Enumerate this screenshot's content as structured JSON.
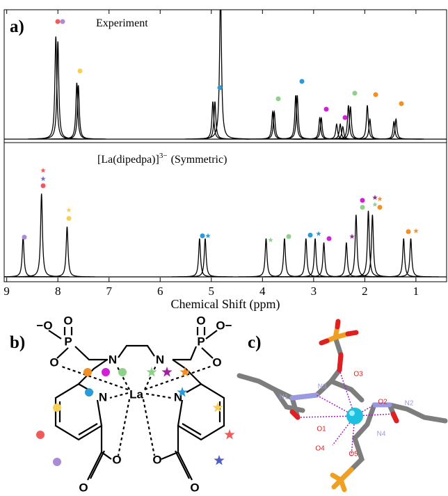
{
  "chart_data": [
    {
      "type": "spectrum",
      "label": "a)",
      "title": "Experiment",
      "color": "#000000",
      "x": [
        8.04,
        8.0,
        7.63,
        7.6,
        4.97,
        4.93,
        4.82,
        3.8,
        3.77,
        3.35,
        3.32,
        2.88,
        2.85,
        2.55,
        2.48,
        2.43,
        2.32,
        2.28,
        1.95,
        1.9,
        1.43,
        1.39
      ],
      "values": [
        82,
        78,
        45,
        43,
        30,
        30,
        120,
        22,
        22,
        35,
        35,
        17,
        17,
        12,
        12,
        10,
        27,
        26,
        27,
        16,
        14,
        16
      ],
      "xlim": [
        9.05,
        0.4
      ],
      "ylim": [
        0,
        100
      ]
    },
    {
      "type": "spectrum",
      "title": [
        "[La(dipedpa)]",
        "3−",
        "(Symmetric)"
      ],
      "color": "#000000",
      "x": [
        8.68,
        8.32,
        7.82,
        5.23,
        5.12,
        3.93,
        3.57,
        3.15,
        2.97,
        2.8,
        2.36,
        2.17,
        1.93,
        1.85,
        1.24,
        1.1
      ],
      "values": [
        30,
        63,
        38,
        29,
        29,
        29,
        29,
        29,
        29,
        26,
        26,
        47,
        50,
        47,
        29,
        29
      ],
      "xlim": [
        9.05,
        0.4
      ],
      "ylim": [
        0,
        100
      ],
      "xticks": [
        9,
        8,
        7,
        6,
        5,
        4,
        3,
        2,
        1
      ],
      "xlabel": "Chemical Shift (ppm)"
    }
  ],
  "panel_b": {
    "label": "b)",
    "atoms": [
      "−O",
      "O",
      "P",
      "O",
      "N",
      "N",
      "P",
      "O",
      "O−",
      "O",
      "N",
      "La",
      "N",
      "O",
      "O",
      "O",
      "O"
    ]
  },
  "panel_c": {
    "label": "c)",
    "atoms": [
      "N1",
      "N2",
      "N3",
      "N4",
      "O1",
      "O2",
      "O3",
      "O4",
      "O5"
    ]
  }
}
